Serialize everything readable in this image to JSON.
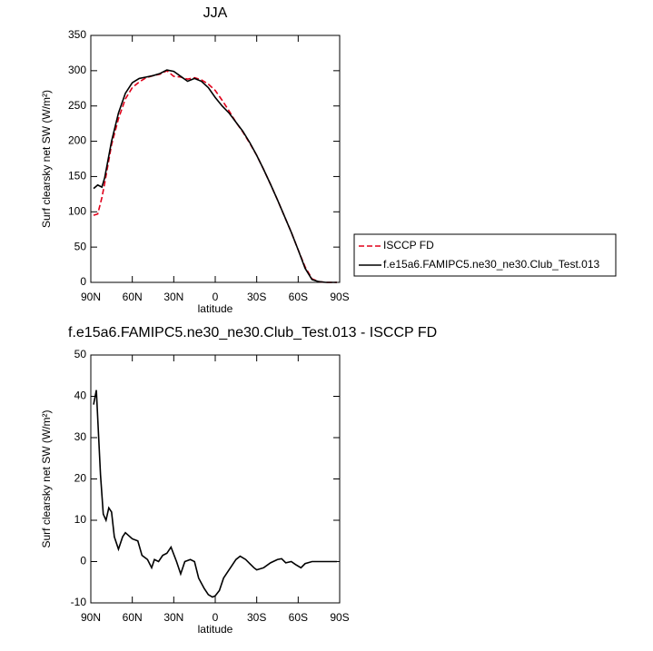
{
  "chart_data": [
    {
      "type": "line",
      "title": "JJA",
      "xlabel": "latitude",
      "ylabel": "Surf clearsky net SW (W/m²)",
      "x": [
        88,
        85,
        82,
        80,
        75,
        70,
        65,
        60,
        55,
        50,
        45,
        40,
        35,
        30,
        25,
        20,
        15,
        10,
        5,
        0,
        -5,
        -10,
        -15,
        -20,
        -25,
        -30,
        -35,
        -40,
        -45,
        -50,
        -55,
        -60,
        -65,
        -70,
        -75,
        -80,
        -85,
        -88
      ],
      "series": [
        {
          "name": "ISCCP FD",
          "color": "#e0001a",
          "dash": true,
          "values": [
            95,
            97,
            120,
            140,
            195,
            232,
            260,
            276,
            284,
            290,
            293,
            295,
            300,
            292,
            291,
            288,
            290,
            287,
            281,
            272,
            258,
            243,
            227,
            213,
            197,
            180,
            160,
            139,
            117,
            94,
            71,
            46,
            22,
            5,
            1,
            0,
            0,
            0
          ]
        },
        {
          "name": "f.e15a6.FAMIPC5.ne30_ne30.Club_Test.013",
          "color": "#000000",
          "dash": false,
          "values": [
            133,
            138,
            135,
            148,
            200,
            240,
            268,
            283,
            289,
            291,
            293,
            296,
            301,
            299,
            292,
            285,
            289,
            285,
            276,
            262,
            250,
            240,
            227,
            214,
            198,
            180,
            160,
            139,
            117,
            94,
            71,
            46,
            20,
            4,
            1,
            0,
            0,
            0
          ]
        }
      ],
      "xlim": [
        90,
        -90
      ],
      "xticks": [
        {
          "value": 90,
          "label": "90N"
        },
        {
          "value": 60,
          "label": "60N"
        },
        {
          "value": 30,
          "label": "30N"
        },
        0,
        {
          "value": -30,
          "label": "30S"
        },
        {
          "value": -60,
          "label": "60S"
        },
        {
          "value": -90,
          "label": "90S"
        }
      ],
      "ylim": [
        0,
        350
      ],
      "yticks": [
        0,
        50,
        100,
        150,
        200,
        250,
        300,
        350
      ],
      "legend": "right"
    },
    {
      "type": "line",
      "title": "f.e15a6.FAMIPC5.ne30_ne30.Club_Test.013 - ISCCP FD",
      "xlabel": "latitude",
      "ylabel": "Surf clearsky net SW (W/m²)",
      "x": [
        88,
        86,
        83,
        81,
        79,
        77,
        75,
        73,
        70,
        67,
        65,
        60,
        56,
        53,
        49,
        46,
        44,
        41,
        38,
        35,
        32,
        28,
        25,
        22,
        18,
        15,
        12,
        8,
        5,
        2,
        0,
        -3,
        -6,
        -10,
        -15,
        -18,
        -22,
        -25,
        -28,
        -30,
        -35,
        -40,
        -45,
        -48,
        -51,
        -55,
        -58,
        -62,
        -65,
        -70,
        -80,
        -88
      ],
      "series": [
        {
          "color": "#000000",
          "dash": false,
          "values": [
            38,
            41.5,
            21,
            11.5,
            10,
            13,
            12,
            6,
            3,
            6,
            7,
            5.5,
            5,
            1.5,
            0.5,
            -1.5,
            0.5,
            0,
            1.5,
            2,
            3.5,
            0,
            -3,
            0,
            0.5,
            0,
            -4,
            -6.5,
            -8,
            -8.6,
            -8.3,
            -7,
            -4,
            -2,
            0.5,
            1.3,
            0.5,
            -0.5,
            -1.5,
            -2,
            -1.5,
            -0.3,
            0.5,
            0.7,
            -0.3,
            0,
            -0.7,
            -1.5,
            -0.5,
            0,
            0,
            0
          ]
        }
      ],
      "xlim": [
        90,
        -90
      ],
      "xticks": [
        {
          "value": 90,
          "label": "90N"
        },
        {
          "value": 60,
          "label": "60N"
        },
        {
          "value": 30,
          "label": "30N"
        },
        0,
        {
          "value": -30,
          "label": "30S"
        },
        {
          "value": -60,
          "label": "60S"
        },
        {
          "value": -90,
          "label": "90S"
        }
      ],
      "ylim": [
        -10,
        50
      ],
      "yticks": [
        -10,
        0,
        10,
        20,
        30,
        40,
        50
      ]
    }
  ]
}
